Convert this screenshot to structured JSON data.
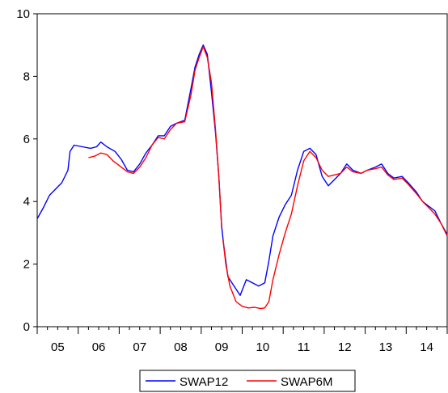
{
  "chart_data": {
    "type": "line",
    "title": "",
    "xlabel": "",
    "ylabel": "",
    "xlim": [
      2004.5,
      2014.5
    ],
    "ylim": [
      0,
      10
    ],
    "y_ticks": [
      0,
      2,
      4,
      6,
      8,
      10
    ],
    "y_tick_labels": [
      "0",
      "2",
      "4",
      "6",
      "8",
      "10"
    ],
    "x_tick_labels": [
      "05",
      "06",
      "07",
      "08",
      "09",
      "10",
      "11",
      "12",
      "13",
      "14"
    ],
    "grid": false,
    "legend_position": "bottom-center",
    "series": [
      {
        "name": "SWAP12",
        "color": "#0000ff",
        "points": [
          [
            2004.5,
            3.45
          ],
          [
            2004.65,
            3.8
          ],
          [
            2004.8,
            4.2
          ],
          [
            2004.95,
            4.4
          ],
          [
            2005.1,
            4.6
          ],
          [
            2005.25,
            5.0
          ],
          [
            2005.3,
            5.6
          ],
          [
            2005.4,
            5.8
          ],
          [
            2005.6,
            5.75
          ],
          [
            2005.8,
            5.7
          ],
          [
            2005.95,
            5.75
          ],
          [
            2006.05,
            5.9
          ],
          [
            2006.2,
            5.75
          ],
          [
            2006.4,
            5.6
          ],
          [
            2006.55,
            5.35
          ],
          [
            2006.7,
            5.0
          ],
          [
            2006.85,
            4.95
          ],
          [
            2007.0,
            5.2
          ],
          [
            2007.15,
            5.55
          ],
          [
            2007.3,
            5.8
          ],
          [
            2007.45,
            6.1
          ],
          [
            2007.6,
            6.1
          ],
          [
            2007.75,
            6.4
          ],
          [
            2007.9,
            6.5
          ],
          [
            2008.1,
            6.6
          ],
          [
            2008.25,
            7.6
          ],
          [
            2008.35,
            8.3
          ],
          [
            2008.45,
            8.7
          ],
          [
            2008.55,
            9.0
          ],
          [
            2008.65,
            8.7
          ],
          [
            2008.75,
            7.5
          ],
          [
            2008.85,
            6.2
          ],
          [
            2008.93,
            4.8
          ],
          [
            2009.0,
            3.2
          ],
          [
            2009.05,
            2.6
          ],
          [
            2009.15,
            1.6
          ],
          [
            2009.3,
            1.3
          ],
          [
            2009.45,
            1.0
          ],
          [
            2009.6,
            1.5
          ],
          [
            2009.75,
            1.4
          ],
          [
            2009.9,
            1.3
          ],
          [
            2010.05,
            1.4
          ],
          [
            2010.15,
            2.1
          ],
          [
            2010.25,
            2.9
          ],
          [
            2010.4,
            3.5
          ],
          [
            2010.55,
            3.9
          ],
          [
            2010.7,
            4.2
          ],
          [
            2010.85,
            5.0
          ],
          [
            2011.0,
            5.6
          ],
          [
            2011.15,
            5.7
          ],
          [
            2011.3,
            5.5
          ],
          [
            2011.45,
            4.8
          ],
          [
            2011.6,
            4.5
          ],
          [
            2011.75,
            4.7
          ],
          [
            2011.9,
            4.9
          ],
          [
            2012.05,
            5.2
          ],
          [
            2012.2,
            5.0
          ],
          [
            2012.4,
            4.9
          ],
          [
            2012.55,
            5.0
          ],
          [
            2012.75,
            5.1
          ],
          [
            2012.9,
            5.2
          ],
          [
            2013.05,
            4.9
          ],
          [
            2013.2,
            4.75
          ],
          [
            2013.4,
            4.8
          ],
          [
            2013.55,
            4.6
          ],
          [
            2013.75,
            4.3
          ],
          [
            2013.9,
            4.0
          ],
          [
            2014.05,
            3.85
          ],
          [
            2014.2,
            3.7
          ],
          [
            2014.35,
            3.3
          ],
          [
            2014.5,
            2.95
          ]
        ]
      },
      {
        "name": "SWAP6M",
        "color": "#ff0000",
        "segments": [
          [
            [
              2005.75,
              5.4
            ],
            [
              2005.9,
              5.45
            ],
            [
              2006.05,
              5.55
            ],
            [
              2006.2,
              5.5
            ],
            [
              2006.35,
              5.3
            ],
            [
              2006.5,
              5.15
            ],
            [
              2006.7,
              4.95
            ],
            [
              2006.85,
              4.9
            ],
            [
              2007.0,
              5.1
            ],
            [
              2007.15,
              5.4
            ],
            [
              2007.3,
              5.8
            ],
            [
              2007.45,
              6.05
            ],
            [
              2007.6,
              6.0
            ],
            [
              2007.75,
              6.3
            ],
            [
              2007.9,
              6.5
            ],
            [
              2008.1,
              6.55
            ],
            [
              2008.25,
              7.4
            ],
            [
              2008.35,
              8.2
            ],
            [
              2008.45,
              8.6
            ],
            [
              2008.55,
              8.95
            ],
            [
              2008.65,
              8.6
            ],
            [
              2008.75,
              7.8
            ],
            [
              2008.85,
              6.3
            ],
            [
              2008.93,
              4.8
            ],
            [
              2009.0,
              3.2
            ]
          ],
          [
            [
              2009.03,
              2.8
            ],
            [
              2009.1,
              2.0
            ],
            [
              2009.2,
              1.3
            ],
            [
              2009.35,
              0.8
            ],
            [
              2009.5,
              0.65
            ],
            [
              2009.65,
              0.6
            ],
            [
              2009.8,
              0.62
            ],
            [
              2009.95,
              0.58
            ],
            [
              2010.05,
              0.6
            ],
            [
              2010.15,
              0.8
            ],
            [
              2010.25,
              1.5
            ],
            [
              2010.4,
              2.3
            ],
            [
              2010.55,
              3.0
            ],
            [
              2010.7,
              3.6
            ],
            [
              2010.85,
              4.5
            ],
            [
              2011.0,
              5.3
            ],
            [
              2011.15,
              5.6
            ],
            [
              2011.3,
              5.4
            ],
            [
              2011.45,
              5.0
            ],
            [
              2011.6,
              4.8
            ],
            [
              2011.75,
              4.85
            ],
            [
              2011.9,
              4.9
            ],
            [
              2012.05,
              5.1
            ],
            [
              2012.2,
              4.95
            ],
            [
              2012.4,
              4.9
            ],
            [
              2012.55,
              5.0
            ],
            [
              2012.75,
              5.05
            ],
            [
              2012.9,
              5.1
            ],
            [
              2013.05,
              4.85
            ],
            [
              2013.2,
              4.7
            ],
            [
              2013.4,
              4.75
            ],
            [
              2013.55,
              4.55
            ],
            [
              2013.75,
              4.25
            ],
            [
              2013.9,
              4.0
            ],
            [
              2014.05,
              3.8
            ],
            [
              2014.2,
              3.6
            ],
            [
              2014.35,
              3.3
            ],
            [
              2014.5,
              2.9
            ]
          ]
        ]
      }
    ]
  }
}
